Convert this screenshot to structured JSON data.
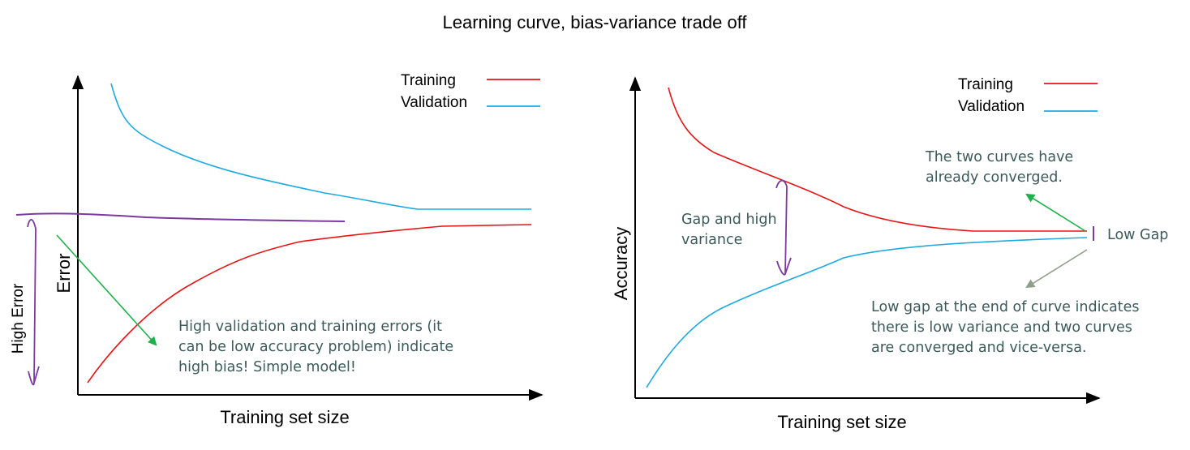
{
  "title": "Learning curve, bias-variance trade off",
  "colors": {
    "training": "#e81414",
    "validation": "#1ea9e1",
    "marker": "#7a3aa0",
    "arrow_green": "#1eb04a",
    "arrow_gray": "#8e9e88",
    "note_text": "#3b5a59",
    "axis": "#000000"
  },
  "left_panel": {
    "y_axis_label": "Error",
    "x_axis_label": "Training set size",
    "legend": [
      {
        "label": "Training",
        "series": "training"
      },
      {
        "label": "Validation",
        "series": "validation"
      }
    ],
    "high_error_label": "High Error",
    "note_lines": [
      "High validation and training errors (it",
      "can be low accuracy problem) indicate",
      "high bias! Simple model!"
    ]
  },
  "right_panel": {
    "y_axis_label": "Accuracy",
    "x_axis_label": "Training set size",
    "legend": [
      {
        "label": "Training",
        "series": "training"
      },
      {
        "label": "Validation",
        "series": "validation"
      }
    ],
    "gap_label_lines": [
      "Gap and high",
      "variance"
    ],
    "converged_note_lines": [
      "The two curves have",
      "already converged."
    ],
    "low_gap_label": "Low Gap",
    "bottom_note_lines": [
      "Low gap at the end of curve indicates",
      "there is low variance and two curves",
      "are converged and vice-versa."
    ]
  }
}
